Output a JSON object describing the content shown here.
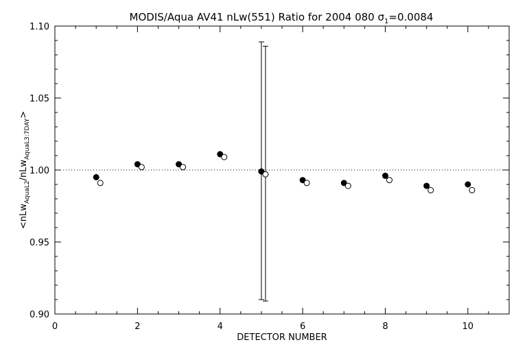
{
  "chart_data": {
    "type": "scatter",
    "title": "MODIS/Aqua AV41 nLw(551) Ratio for 2004 080 σ",
    "title_sub": "1",
    "title_tail": "=0.0084",
    "xlabel": "DETECTOR NUMBER",
    "ylabel_parts": {
      "open": "<nLw",
      "sub1": "AquaL2",
      "mid": "/nLw",
      "sub2": "AquaL3:7DAY",
      "close": ">"
    },
    "xlim": [
      0,
      11
    ],
    "ylim": [
      0.9,
      1.1
    ],
    "x_ticks": [
      0,
      2,
      4,
      6,
      8,
      10
    ],
    "x_tick_labels": [
      "0",
      "2",
      "4",
      "6",
      "8",
      "10"
    ],
    "y_ticks": [
      0.9,
      0.95,
      1.0,
      1.05,
      1.1
    ],
    "y_tick_labels": [
      "0.90",
      "0.95",
      "1.00",
      "1.05",
      "1.10"
    ],
    "reference_line": {
      "y": 1.0,
      "style": "dotted"
    },
    "series": [
      {
        "marker": "filled-circle",
        "x": [
          1,
          2,
          3,
          4,
          5,
          6,
          7,
          8,
          9,
          10
        ],
        "y": [
          0.995,
          1.004,
          1.004,
          1.011,
          0.999,
          0.993,
          0.991,
          0.996,
          0.989,
          0.99
        ],
        "error_bars": [
          null,
          null,
          null,
          null,
          [
            0.91,
            1.089
          ],
          null,
          null,
          null,
          null,
          null
        ]
      },
      {
        "marker": "open-circle",
        "x": [
          1.1,
          2.1,
          3.1,
          4.1,
          5.1,
          6.1,
          7.1,
          8.1,
          9.1,
          10.1
        ],
        "y": [
          0.991,
          1.002,
          1.002,
          1.009,
          0.997,
          0.991,
          0.989,
          0.993,
          0.986,
          0.986
        ],
        "error_bars": [
          null,
          null,
          null,
          null,
          [
            0.909,
            1.086
          ],
          null,
          null,
          null,
          null,
          null
        ]
      }
    ]
  }
}
